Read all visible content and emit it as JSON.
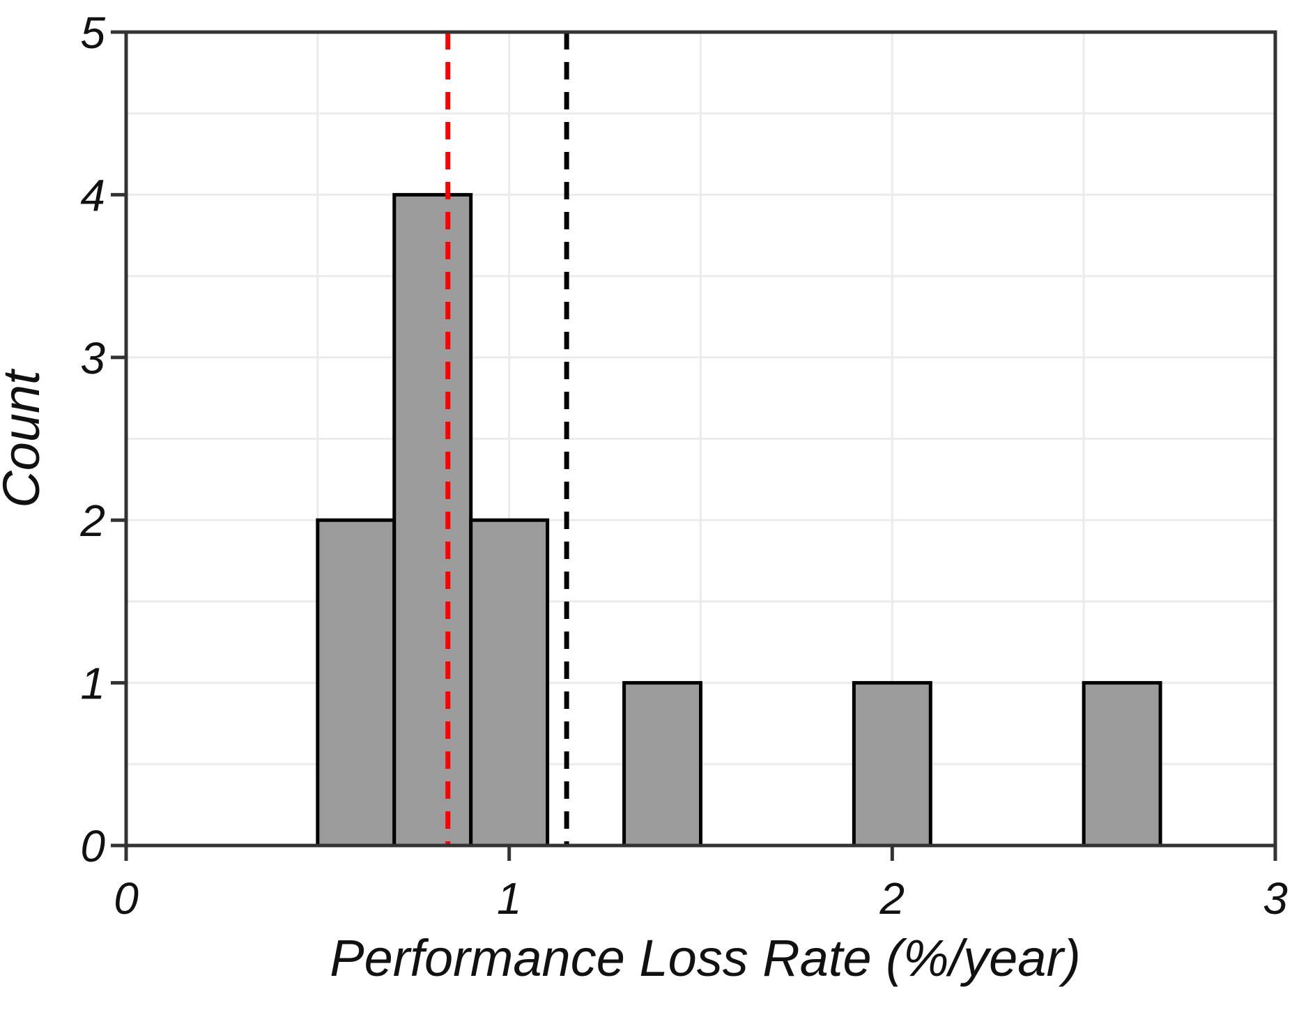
{
  "chart_data": {
    "type": "histogram",
    "title": "",
    "xlabel": "Performance Loss Rate (%/year)",
    "ylabel": "Count",
    "xlim": [
      0,
      3
    ],
    "ylim": [
      0,
      5
    ],
    "x_tick_values": [
      0,
      1,
      2,
      3
    ],
    "x_tick_labels": [
      "0",
      "1",
      "2",
      "3"
    ],
    "y_tick_values": [
      0,
      1,
      2,
      3,
      4,
      5
    ],
    "y_tick_labels": [
      "0",
      "1",
      "2",
      "3",
      "4",
      "5"
    ],
    "grid": "on",
    "grid_step": 0.5,
    "legend": "none",
    "bin_width": 0.2,
    "bins": [
      {
        "x0": 0.5,
        "x1": 0.7,
        "count": 2
      },
      {
        "x0": 0.7,
        "x1": 0.9,
        "count": 4
      },
      {
        "x0": 0.9,
        "x1": 1.1,
        "count": 2
      },
      {
        "x0": 1.3,
        "x1": 1.5,
        "count": 1
      },
      {
        "x0": 1.9,
        "x1": 2.1,
        "count": 1
      },
      {
        "x0": 2.5,
        "x1": 2.7,
        "count": 1
      }
    ],
    "reference_lines": [
      {
        "name": "median-line",
        "x": 0.84,
        "color": "#fe0000",
        "style": "dashed"
      },
      {
        "name": "mean-line",
        "x": 1.15,
        "color": "#000000",
        "style": "dashed"
      }
    ],
    "colors": {
      "bar_fill": "#9b9b9b",
      "bar_stroke": "#000000",
      "grid": "#ebebeb",
      "axis": "#333333",
      "tick_label": "#111111",
      "background": "#ffffff"
    }
  }
}
